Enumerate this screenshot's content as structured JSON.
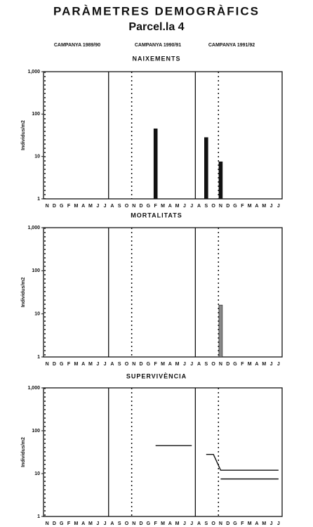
{
  "title": "PARÀMETRES DEMOGRÀFICS",
  "subtitle": "Parcel.la 4",
  "campaigns": [
    "CAMPANYA 1989/90",
    "CAMPANYA 1990/91",
    "CAMPANYA 1991/92"
  ],
  "chart_data": [
    {
      "type": "bar",
      "title": "NAIXEMENTS",
      "ylabel": "Individus/m2",
      "log": true,
      "color": "#111111",
      "categories": [
        "N",
        "D",
        "G",
        "F",
        "M",
        "A",
        "M",
        "J",
        "J",
        "A",
        "S",
        "O",
        "N",
        "D",
        "G",
        "F",
        "M",
        "A",
        "M",
        "J",
        "J",
        "A",
        "S",
        "O",
        "N",
        "D",
        "G",
        "F",
        "M",
        "A",
        "M",
        "J",
        "J"
      ],
      "values": [
        null,
        null,
        null,
        null,
        null,
        null,
        null,
        null,
        null,
        null,
        null,
        null,
        null,
        null,
        null,
        45,
        null,
        null,
        null,
        null,
        null,
        null,
        28,
        null,
        7.5,
        null,
        null,
        null,
        null,
        null,
        null,
        null,
        null
      ],
      "ylim": [
        1,
        1000
      ],
      "yticks": [
        1,
        10,
        100,
        {
          "value": 1000,
          "label": "1,000"
        }
      ]
    },
    {
      "type": "bar",
      "title": "MORTALITATS",
      "ylabel": "Individus/m2",
      "log": true,
      "color": "#8a8a8a",
      "categories": [
        "N",
        "D",
        "G",
        "F",
        "M",
        "A",
        "M",
        "J",
        "J",
        "A",
        "S",
        "O",
        "N",
        "D",
        "G",
        "F",
        "M",
        "A",
        "M",
        "J",
        "J",
        "A",
        "S",
        "O",
        "N",
        "D",
        "G",
        "F",
        "M",
        "A",
        "M",
        "J",
        "J"
      ],
      "values": [
        null,
        null,
        null,
        null,
        null,
        null,
        null,
        null,
        null,
        null,
        null,
        null,
        null,
        null,
        null,
        null,
        null,
        null,
        null,
        null,
        null,
        null,
        null,
        null,
        16,
        null,
        null,
        null,
        null,
        null,
        null,
        null,
        null
      ],
      "ylim": [
        1,
        1000
      ],
      "yticks": [
        1,
        10,
        100,
        {
          "value": 1000,
          "label": "1,000"
        }
      ]
    },
    {
      "type": "line",
      "title": "SUPERVIVÈNCIA",
      "ylabel": "Individus/m2",
      "log": true,
      "categories": [
        "N",
        "D",
        "G",
        "F",
        "M",
        "A",
        "M",
        "J",
        "J",
        "A",
        "S",
        "O",
        "N",
        "D",
        "G",
        "F",
        "M",
        "A",
        "M",
        "J",
        "J",
        "A",
        "S",
        "O",
        "N",
        "D",
        "G",
        "F",
        "M",
        "A",
        "M",
        "J",
        "J"
      ],
      "series": [
        {
          "color": "#111111",
          "values": [
            null,
            null,
            null,
            null,
            null,
            null,
            null,
            null,
            null,
            null,
            null,
            null,
            null,
            null,
            null,
            45,
            45,
            45,
            45,
            45,
            45,
            null,
            28,
            28,
            12,
            12,
            12,
            12,
            12,
            12,
            12,
            12,
            12
          ]
        },
        {
          "color": "#111111",
          "values": [
            null,
            null,
            null,
            null,
            null,
            null,
            null,
            null,
            null,
            null,
            null,
            null,
            null,
            null,
            null,
            null,
            null,
            null,
            null,
            null,
            null,
            null,
            null,
            null,
            7.5,
            7.5,
            7.5,
            7.5,
            7.5,
            7.5,
            7.5,
            7.5,
            7.5
          ]
        }
      ],
      "ylim": [
        1,
        1000
      ],
      "yticks": [
        1,
        10,
        100,
        {
          "value": 1000,
          "label": "1,000"
        }
      ]
    }
  ]
}
